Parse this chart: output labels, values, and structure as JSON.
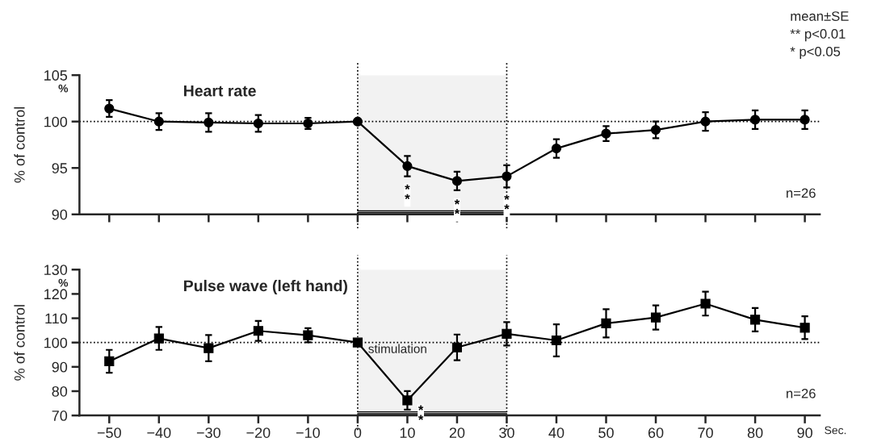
{
  "chart_data": [
    {
      "type": "line",
      "title": "Heart rate",
      "ylabel": "% of control",
      "xlim": [
        -56,
        93
      ],
      "xticks": [
        -50,
        -40,
        -30,
        -20,
        -10,
        0,
        10,
        20,
        30,
        40,
        50,
        60,
        70,
        80,
        90
      ],
      "ylim": [
        90,
        105
      ],
      "yticks": [
        90,
        95,
        100,
        105
      ],
      "tick_labels": "y",
      "marker": "circle",
      "line_style": "solid",
      "grid": false,
      "legend": false,
      "x": [
        -50,
        -40,
        -30,
        -20,
        -10,
        0,
        10,
        20,
        30,
        40,
        50,
        60,
        70,
        80,
        90
      ],
      "series": [
        {
          "color": "#000000",
          "values": [
            101.4,
            100.0,
            99.9,
            99.8,
            99.8,
            100.0,
            95.2,
            93.6,
            94.1,
            97.1,
            98.7,
            99.1,
            100.0,
            100.2,
            100.2
          ],
          "errors": [
            0.9,
            0.9,
            1.0,
            0.9,
            0.6,
            null,
            1.1,
            1.0,
            1.2,
            1.0,
            0.8,
            0.9,
            1.0,
            1.0,
            1.0
          ]
        }
      ],
      "ref_lines": [
        {
          "axis": "y",
          "value": 100,
          "line_style": "dotted"
        },
        {
          "axis": "x",
          "value": 0,
          "line_style": "dotted"
        },
        {
          "axis": "x",
          "value": 30,
          "line_style": "dotted"
        }
      ],
      "bands": [
        {
          "axis": "x",
          "from": 0,
          "to": 30,
          "color": "#f2f2f2"
        }
      ],
      "annotations": [
        "%",
        "n=26",
        "mean±SE",
        "** p<0.01",
        "* p<0.05",
        {
          "text": "**",
          "x": 10,
          "y": 95.2
        },
        {
          "text": "**",
          "x": 20,
          "y": 93.6
        },
        {
          "text": "**",
          "x": 30,
          "y": 94.1
        }
      ]
    },
    {
      "type": "line",
      "title": "Pulse wave (left hand)",
      "ylabel": "% of control",
      "xlabel": "Sec.",
      "xlim": [
        -56,
        93
      ],
      "xticks": [
        {
          "value": -50,
          "label": "−50"
        },
        {
          "value": -40,
          "label": "−40"
        },
        {
          "value": -30,
          "label": "−30"
        },
        {
          "value": -20,
          "label": "−20"
        },
        {
          "value": -10,
          "label": "−10"
        },
        0,
        10,
        20,
        30,
        40,
        50,
        60,
        70,
        80,
        90
      ],
      "ylim": [
        70,
        130
      ],
      "yticks": [
        70,
        80,
        90,
        100,
        110,
        120,
        130
      ],
      "marker": "square",
      "line_style": "solid",
      "grid": false,
      "legend": false,
      "x": [
        -50,
        -40,
        -30,
        -20,
        -10,
        0,
        10,
        20,
        30,
        40,
        50,
        60,
        70,
        80,
        90
      ],
      "series": [
        {
          "color": "#000000",
          "values": [
            92.3,
            101.7,
            97.7,
            104.8,
            103.0,
            100.0,
            76.2,
            98.0,
            103.6,
            100.9,
            107.9,
            110.3,
            116.0,
            109.4,
            106.1
          ],
          "errors": [
            4.7,
            4.7,
            5.4,
            4.1,
            2.9,
            null,
            3.8,
            5.3,
            4.8,
            6.6,
            5.8,
            5.0,
            4.9,
            4.8,
            4.7
          ]
        }
      ],
      "ref_lines": [
        {
          "axis": "y",
          "value": 100,
          "line_style": "dotted"
        },
        {
          "axis": "x",
          "value": 0,
          "line_style": "dotted"
        },
        {
          "axis": "x",
          "value": 30,
          "line_style": "dotted"
        }
      ],
      "bands": [
        {
          "axis": "x",
          "from": 0,
          "to": 30,
          "color": "#f2f2f2",
          "label": "stimulation"
        }
      ],
      "annotations": [
        "%",
        "n=26",
        {
          "text": "**",
          "x": 10,
          "y": 76.2
        }
      ]
    }
  ]
}
